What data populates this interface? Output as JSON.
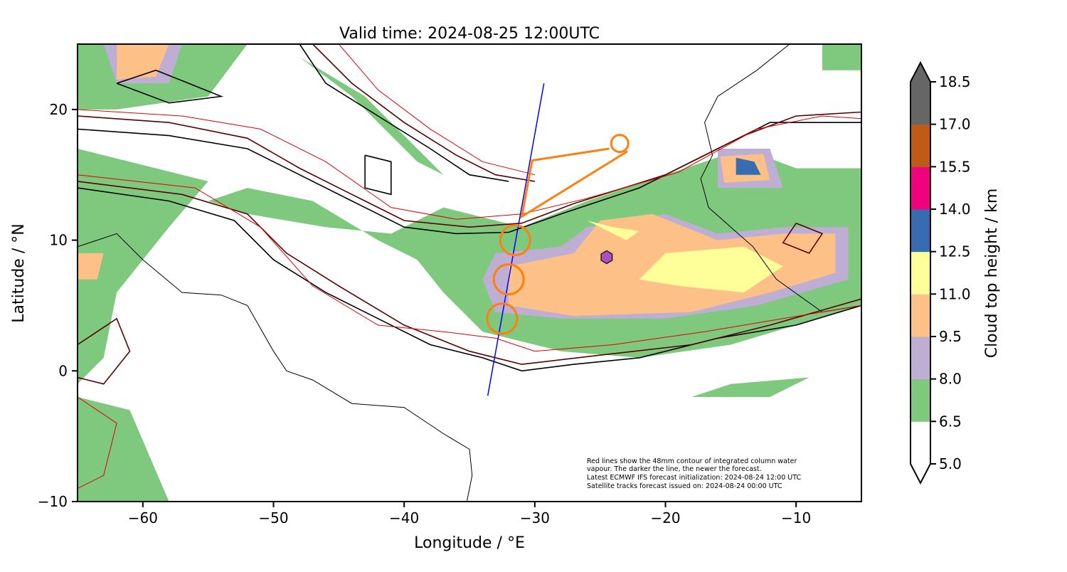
{
  "chart_data": {
    "type": "map",
    "title": "Valid time: 2024-08-25 12:00UTC",
    "xlabel": "Longitude / °E",
    "ylabel": "Latitude / °N",
    "xlim": [
      -65,
      -5
    ],
    "ylim": [
      -10,
      25
    ],
    "xticks": [
      -60,
      -50,
      -40,
      -30,
      -20,
      -10
    ],
    "xtick_labels": [
      "−60",
      "−50",
      "−40",
      "−30",
      "−20",
      "−10"
    ],
    "yticks": [
      -10,
      0,
      10,
      20
    ],
    "ytick_labels": [
      "−10",
      "0",
      "10",
      "20"
    ],
    "annotation": [
      "Red lines show the 48mm contour of integrated column water",
      "vapour. The darker the line, the newer the forecast.",
      "Latest ECMWF IFS forecast initialization: 2024-08-24 12:00 UTC",
      "Satellite tracks forecast issued on: 2024-08-24 00:00 UTC"
    ],
    "satellite_track": {
      "color": "#0000ff",
      "points": [
        [
          -29.3,
          22.0
        ],
        [
          -33.6,
          -1.9
        ]
      ]
    },
    "flight_track": {
      "color": "#ff7f0e",
      "path": [
        [
          -22.9,
          16.8
        ],
        [
          -31.0,
          11.8
        ],
        [
          -30.2,
          16.1
        ],
        [
          -24.3,
          17.0
        ]
      ],
      "circles": [
        [
          -23.5,
          17.4
        ],
        [
          -31.5,
          10.0
        ],
        [
          -32.0,
          7.0
        ],
        [
          -32.5,
          4.0
        ]
      ]
    },
    "marker": {
      "shape": "hexagon",
      "color": "#b04fc0",
      "lon": -24.5,
      "lat": 8.7
    },
    "colorbar": {
      "label": "Cloud top height / km",
      "levels": [
        "5.0",
        "6.5",
        "8.0",
        "9.5",
        "11.0",
        "12.5",
        "14.0",
        "15.5",
        "17.0",
        "18.5"
      ],
      "colors": [
        "#ffffff",
        "#7fc97f",
        "#beaed4",
        "#fdc086",
        "#ffff99",
        "#386cb0",
        "#f0027f",
        "#bf5b17",
        "#666666"
      ],
      "extend": "both"
    }
  }
}
